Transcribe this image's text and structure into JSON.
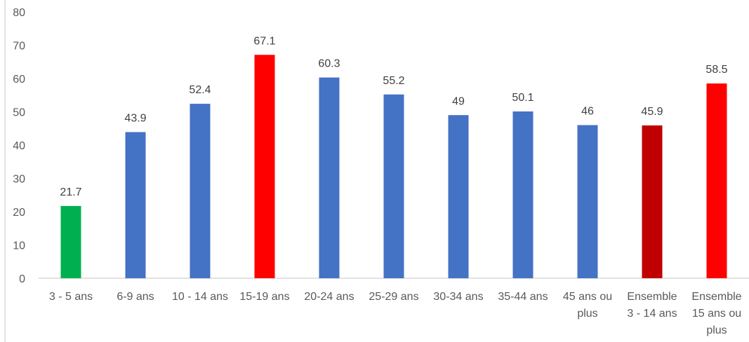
{
  "chart_data": {
    "type": "bar",
    "title": "",
    "xlabel": "",
    "ylabel": "",
    "ylim": [
      0,
      80
    ],
    "yticks": [
      0,
      10,
      20,
      30,
      40,
      50,
      60,
      70,
      80
    ],
    "grid": false,
    "legend": "none",
    "categories": [
      [
        "3 - 5 ans"
      ],
      [
        "6-9 ans"
      ],
      [
        "10 - 14 ans"
      ],
      [
        "15-19 ans"
      ],
      [
        "20-24 ans"
      ],
      [
        "25-29 ans"
      ],
      [
        "30-34 ans"
      ],
      [
        "35-44 ans"
      ],
      [
        "45 ans ou",
        "plus"
      ],
      [
        "Ensemble",
        "3 - 14 ans"
      ],
      [
        "Ensemble",
        "15 ans ou",
        "plus"
      ]
    ],
    "values": [
      21.7,
      43.9,
      52.4,
      67.1,
      60.3,
      55.2,
      49,
      50.1,
      46,
      45.9,
      58.5
    ],
    "value_labels": [
      "21.7",
      "43.9",
      "52.4",
      "67.1",
      "60.3",
      "55.2",
      "49",
      "50.1",
      "46",
      "45.9",
      "58.5"
    ],
    "bar_colors": [
      "#00b050",
      "#4472c4",
      "#4472c4",
      "#ff0000",
      "#4472c4",
      "#4472c4",
      "#4472c4",
      "#4472c4",
      "#4472c4",
      "#c00000",
      "#ff0000"
    ],
    "axis_color": "#d9d9d9"
  }
}
